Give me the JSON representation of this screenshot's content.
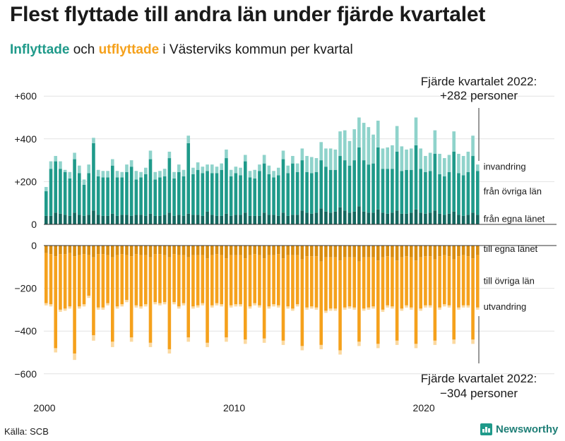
{
  "title": "Flest flyttade till andra län under fjärde kvartalet",
  "subtitle": {
    "in_word": "Inflyttade",
    "connector": " och ",
    "out_word": "utflyttade",
    "rest": " i Västerviks kommun per kvartal"
  },
  "source": "Källa: SCB",
  "brand": "Newsworthy",
  "colors": {
    "in_egna": "#14685f",
    "in_ovriga": "#1f9a8a",
    "in_top": "#8fd3cb",
    "out_egna": "#d98c0f",
    "out_ovriga": "#f5a11c",
    "out_top": "#fbd9a0"
  },
  "chart_data": {
    "type": "bar",
    "stacked": true,
    "x_ticks": [
      "2000",
      "2010",
      "2020"
    ],
    "y_ticks_top": [
      "+600",
      "+400",
      "+200",
      "0"
    ],
    "y_ticks_bottom": [
      "0",
      "−200",
      "−400",
      "−600"
    ],
    "ylim_top": [
      0,
      600
    ],
    "ylim_bottom": [
      -600,
      0
    ],
    "series_labels": {
      "in_total": "invandring",
      "in_ovriga": "från övriga län",
      "in_egna": "från egna länet",
      "out_egna": "till egna länet",
      "out_ovriga": "till övriga län",
      "out_total": "utvandring"
    },
    "annotation_top": [
      "Fjärde kvartalet 2022:",
      "+282 personer"
    ],
    "annotation_bottom": [
      "Fjärde kvartalet 2022:",
      "−304 personer"
    ],
    "quarters_start": "2000 Q1",
    "in_egna": [
      40,
      40,
      55,
      50,
      45,
      40,
      55,
      45,
      40,
      45,
      65,
      45,
      40,
      40,
      50,
      40,
      45,
      45,
      40,
      45,
      45,
      40,
      50,
      40,
      40,
      45,
      55,
      40,
      45,
      40,
      50,
      45,
      45,
      40,
      60,
      45,
      40,
      40,
      50,
      40,
      45,
      45,
      55,
      40,
      40,
      40,
      55,
      45,
      45,
      40,
      55,
      40,
      45,
      45,
      65,
      55,
      50,
      55,
      75,
      60,
      55,
      60,
      80,
      65,
      55,
      60,
      85,
      60,
      55,
      55,
      70,
      55,
      50,
      55,
      65,
      50,
      50,
      55,
      70,
      55,
      50,
      55,
      65,
      50,
      45,
      50,
      60,
      45,
      40,
      45,
      55,
      45
    ],
    "in_ovriga": [
      115,
      220,
      240,
      210,
      200,
      175,
      250,
      195,
      145,
      195,
      315,
      180,
      180,
      180,
      225,
      180,
      175,
      200,
      230,
      165,
      175,
      195,
      255,
      170,
      180,
      180,
      255,
      175,
      200,
      185,
      330,
      190,
      210,
      200,
      190,
      195,
      200,
      215,
      260,
      185,
      195,
      185,
      240,
      180,
      175,
      210,
      230,
      190,
      175,
      190,
      250,
      200,
      240,
      200,
      235,
      190,
      190,
      190,
      225,
      210,
      200,
      195,
      240,
      235,
      220,
      240,
      275,
      240,
      225,
      230,
      290,
      205,
      210,
      205,
      275,
      200,
      205,
      200,
      300,
      205,
      195,
      195,
      265,
      185,
      180,
      195,
      280,
      195,
      190,
      200,
      265,
      205
    ],
    "in_top": [
      20,
      35,
      25,
      35,
      10,
      30,
      30,
      35,
      25,
      40,
      25,
      30,
      30,
      30,
      30,
      30,
      25,
      35,
      30,
      40,
      25,
      30,
      40,
      35,
      30,
      35,
      30,
      30,
      35,
      30,
      35,
      30,
      35,
      30,
      30,
      40,
      30,
      30,
      40,
      30,
      30,
      35,
      30,
      30,
      40,
      30,
      40,
      40,
      30,
      35,
      40,
      35,
      35,
      40,
      55,
      75,
      75,
      65,
      85,
      85,
      100,
      95,
      115,
      140,
      115,
      145,
      140,
      175,
      175,
      135,
      125,
      95,
      100,
      110,
      120,
      115,
      95,
      100,
      130,
      95,
      75,
      85,
      110,
      95,
      85,
      80,
      95,
      90,
      90,
      95,
      95,
      30
    ],
    "out_egna": [
      35,
      40,
      50,
      40,
      40,
      35,
      50,
      45,
      40,
      45,
      55,
      40,
      40,
      45,
      55,
      45,
      40,
      45,
      50,
      40,
      45,
      45,
      55,
      40,
      40,
      45,
      55,
      40,
      45,
      45,
      55,
      45,
      45,
      45,
      60,
      45,
      40,
      45,
      60,
      45,
      45,
      45,
      60,
      45,
      40,
      45,
      60,
      45,
      45,
      40,
      60,
      45,
      45,
      45,
      65,
      50,
      50,
      50,
      75,
      55,
      55,
      55,
      70,
      55,
      55,
      55,
      75,
      55,
      55,
      55,
      70,
      55,
      50,
      55,
      70,
      55,
      50,
      55,
      70,
      55,
      50,
      50,
      65,
      50,
      45,
      50,
      65,
      50,
      45,
      50,
      60,
      45
    ],
    "out_ovriga": [
      235,
      235,
      430,
      260,
      255,
      250,
      455,
      240,
      235,
      190,
      365,
      250,
      250,
      225,
      395,
      240,
      235,
      210,
      380,
      240,
      240,
      230,
      400,
      225,
      230,
      220,
      430,
      225,
      240,
      225,
      375,
      240,
      235,
      225,
      395,
      235,
      230,
      230,
      370,
      235,
      230,
      230,
      380,
      240,
      230,
      235,
      375,
      240,
      230,
      240,
      385,
      240,
      250,
      230,
      405,
      240,
      235,
      240,
      390,
      250,
      240,
      240,
      420,
      235,
      230,
      235,
      375,
      240,
      235,
      230,
      390,
      245,
      230,
      230,
      375,
      240,
      230,
      235,
      390,
      240,
      230,
      230,
      380,
      240,
      230,
      230,
      375,
      240,
      235,
      230,
      380,
      245
    ],
    "out_top": [
      10,
      10,
      20,
      10,
      10,
      10,
      30,
      10,
      10,
      10,
      25,
      10,
      10,
      10,
      25,
      10,
      10,
      10,
      20,
      10,
      10,
      10,
      20,
      10,
      10,
      10,
      20,
      10,
      10,
      10,
      20,
      10,
      10,
      10,
      20,
      10,
      10,
      10,
      20,
      10,
      10,
      10,
      20,
      10,
      10,
      10,
      20,
      10,
      10,
      10,
      20,
      10,
      10,
      10,
      20,
      10,
      10,
      10,
      20,
      10,
      10,
      10,
      20,
      10,
      10,
      10,
      20,
      10,
      10,
      10,
      20,
      10,
      10,
      10,
      20,
      10,
      10,
      10,
      20,
      10,
      10,
      10,
      20,
      10,
      10,
      10,
      20,
      10,
      10,
      10,
      20,
      10
    ]
  }
}
